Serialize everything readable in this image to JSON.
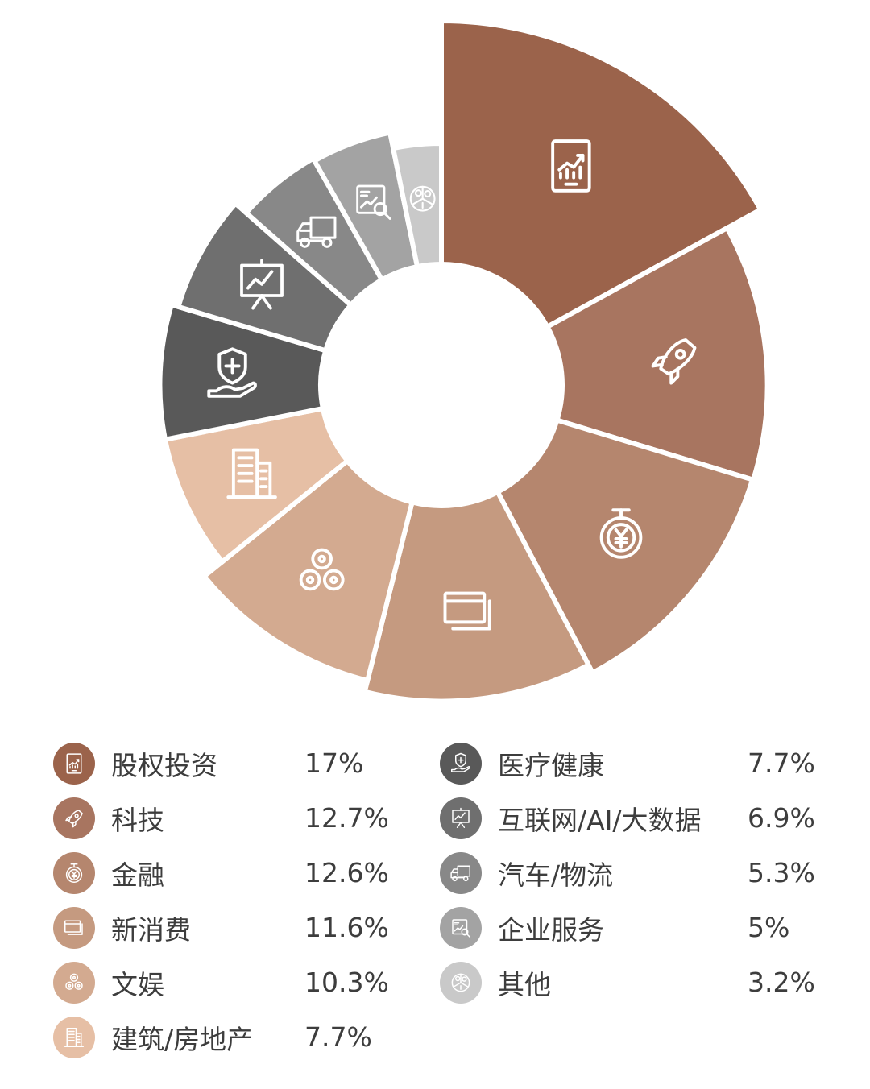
{
  "chart_data": {
    "type": "pie",
    "variant": "donut",
    "title": "",
    "slices": [
      {
        "label": "股权投资",
        "value": 17,
        "value_text": "17%",
        "color": "#9b634b",
        "icon": "tablet-chart-icon"
      },
      {
        "label": "科技",
        "value": 12.7,
        "value_text": "12.7%",
        "color": "#a87560",
        "icon": "rocket-icon"
      },
      {
        "label": "金融",
        "value": 12.6,
        "value_text": "12.6%",
        "color": "#b5866e",
        "icon": "yen-coin-icon"
      },
      {
        "label": "新消费",
        "value": 11.6,
        "value_text": "11.6%",
        "color": "#c59a80",
        "icon": "credit-card-icon"
      },
      {
        "label": "文娱",
        "value": 10.3,
        "value_text": "10.3%",
        "color": "#d3aa90",
        "icon": "film-reels-icon"
      },
      {
        "label": "建筑/房地产",
        "value": 7.7,
        "value_text": "7.7%",
        "color": "#e6bfa5",
        "icon": "building-icon"
      },
      {
        "label": "医疗健康",
        "value": 7.7,
        "value_text": "7.7%",
        "color": "#595959",
        "icon": "health-shield-hand-icon"
      },
      {
        "label": "互联网/AI/大数据",
        "value": 6.9,
        "value_text": "6.9%",
        "color": "#6f6f6f",
        "icon": "presentation-board-icon"
      },
      {
        "label": "汽车/物流",
        "value": 5.3,
        "value_text": "5.3%",
        "color": "#888888",
        "icon": "truck-icon"
      },
      {
        "label": "企业服务",
        "value": 5,
        "value_text": "5%",
        "color": "#a3a3a3",
        "icon": "report-search-icon"
      },
      {
        "label": "其他",
        "value": 3.2,
        "value_text": "3.2%",
        "color": "#c9c9c9",
        "icon": "pie-coins-icon"
      }
    ],
    "legend_position": "bottom",
    "radius_varies_by_value": true
  }
}
